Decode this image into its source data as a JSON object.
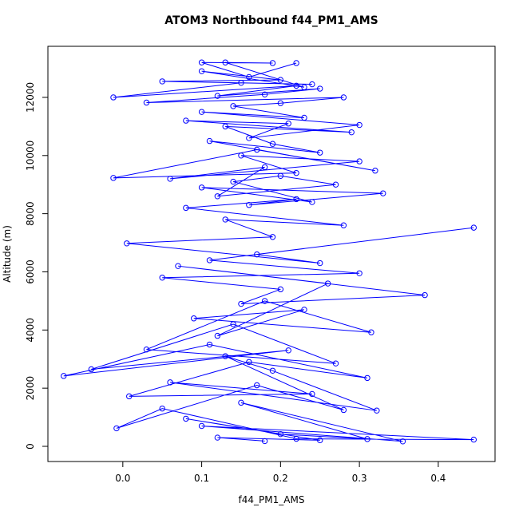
{
  "chart_data": {
    "type": "line",
    "title": "ATOM3 Northbound f44_PM1_AMS",
    "x_label": "f44_PM1_AMS",
    "y_label": "Altitude (m)",
    "color": "#0000ff",
    "markers": true,
    "xlim": [
      -0.095,
      0.472
    ],
    "ylim": [
      -522,
      13756
    ],
    "xticks": [
      {
        "value": 0,
        "label": "0.0"
      },
      0.1,
      0.2,
      0.3,
      0.4
    ],
    "yticks": [
      0,
      2000,
      4000,
      6000,
      8000,
      10000,
      12000
    ],
    "x": [
      0.18,
      0.12,
      0.25,
      0.08,
      0.2,
      0.31,
      0.15,
      0.355,
      0.1,
      0.445,
      0.22,
      0.05,
      -0.008,
      0.17,
      0.28,
      0.13,
      0.19,
      0.322,
      0.06,
      0.24,
      0.008,
      0.16,
      0.31,
      0.11,
      -0.075,
      0.21,
      -0.04,
      0.14,
      0.27,
      0.03,
      0.18,
      0.315,
      0.09,
      0.23,
      0.12,
      0.26,
      0.07,
      0.383,
      0.15,
      0.2,
      0.05,
      0.3,
      0.11,
      0.445,
      0.17,
      0.25,
      0.005,
      0.19,
      0.13,
      0.28,
      0.08,
      0.22,
      0.16,
      0.33,
      0.1,
      0.24,
      0.14,
      0.2,
      0.27,
      0.12,
      0.18,
      0.06,
      0.3,
      0.15,
      0.22,
      -0.012,
      0.17,
      0.32,
      0.11,
      0.25,
      0.19,
      0.13,
      0.29,
      0.08,
      0.21,
      0.16,
      0.3,
      0.1,
      0.23,
      0.14,
      0.2,
      0.28,
      0.03,
      0.18,
      0.25,
      0.12,
      0.22,
      -0.012,
      0.15,
      0.24,
      0.05,
      0.2,
      0.1,
      0.23,
      0.13,
      0.19,
      0.1,
      0.16,
      0.22
    ],
    "values": [
      180,
      300,
      210,
      950,
      420,
      250,
      1500,
      170,
      700,
      230,
      260,
      1300,
      620,
      2100,
      1250,
      3100,
      2600,
      1230,
      2200,
      1800,
      1720,
      2900,
      2350,
      3500,
      2420,
      3300,
      2650,
      4200,
      2850,
      3330,
      5000,
      3920,
      4400,
      4700,
      3800,
      5600,
      6200,
      5200,
      4900,
      5400,
      5800,
      5950,
      6400,
      7520,
      6600,
      6300,
      6980,
      7200,
      7800,
      7600,
      8200,
      8500,
      8300,
      8700,
      8900,
      8400,
      9100,
      9300,
      9000,
      8600,
      9600,
      9200,
      9800,
      10000,
      9400,
      9230,
      10200,
      9480,
      10500,
      10100,
      10400,
      11000,
      10800,
      11200,
      11100,
      10600,
      11050,
      11500,
      11300,
      11700,
      11800,
      12000,
      11820,
      12100,
      12300,
      12050,
      12400,
      12000,
      12500,
      12450,
      12550,
      12600,
      12900,
      12350,
      13200,
      13180,
      13200,
      12700,
      13180
    ]
  }
}
